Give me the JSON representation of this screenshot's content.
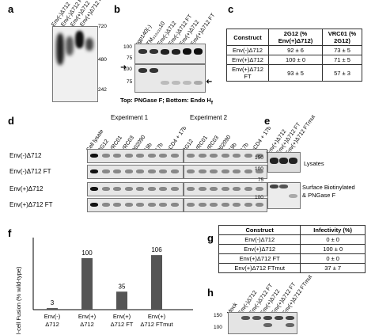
{
  "panels": {
    "a": {
      "label": "a",
      "lanes": [
        "Env(-)Δ712",
        "Env(-)Δ712 FT",
        "Env(+)Δ712",
        "Env(+)Δ712 FT"
      ],
      "markers": [
        "720",
        "480",
        "242"
      ]
    },
    "b": {
      "label": "b",
      "lanes": [
        "sgp140(-)",
        "TM₃₃₃₃₃₃10",
        "Env(-)Δ712",
        "Env(-)Δ712 FT",
        "Env(+)Δ712",
        "Env(+)Δ712 FT"
      ],
      "markers": [
        "100",
        "75",
        "100",
        "75"
      ],
      "caption": "Top: PNGase F; Bottom: Endo H",
      "caption_sub": "f"
    },
    "c": {
      "label": "c",
      "headers": [
        "Construct",
        "2G12 (% Env(+)Δ712)",
        "VRC01 (% 2G12)"
      ],
      "rows": [
        [
          "Env(-)Δ712",
          "92 ± 6",
          "73 ± 5"
        ],
        [
          "Env(+)Δ712",
          "100 ± 0",
          "71 ± 5"
        ],
        [
          "Env(+)Δ712 FT",
          "93 ± 5",
          "57 ± 3"
        ]
      ]
    },
    "d": {
      "label": "d",
      "experiment1": "Experiment 1",
      "experiment2": "Experiment 2",
      "lanes": [
        "Cell lysate",
        "2G12",
        "VRC01",
        "VRC03",
        "902090",
        "19b",
        "17b",
        "sCD4 + 17b",
        "2G12",
        "VRC01",
        "VRC03",
        "902090",
        "19b",
        "17b",
        "sCD4 + 17b"
      ],
      "rows": [
        "Env(-)Δ712",
        "Env(-)Δ712 FT",
        "Env(+)Δ712",
        "Env(+)Δ712 FT"
      ]
    },
    "e": {
      "label": "e",
      "lanes": [
        "Env(+)Δ712",
        "Env(+)Δ712 FT",
        "Env(+)Δ712 FTmut"
      ],
      "markers": [
        "150",
        "100",
        "75",
        "100"
      ],
      "lysates": "Lysates",
      "surface": "Surface Biotinylated & PNGase F"
    },
    "f": {
      "label": "f",
      "ylabel": "Cell-cell Fusion (% wild-type)",
      "chart_data": {
        "type": "bar",
        "categories": [
          "Env(-) Δ712",
          "Env(+) Δ712",
          "Env(+) Δ712 FT",
          "Env(+) Δ712 FTmut"
        ],
        "values": [
          3,
          100,
          35,
          106
        ],
        "value_labels": [
          "3",
          "100",
          "35",
          "106"
        ],
        "ylim": [
          0,
          140
        ]
      }
    },
    "g": {
      "label": "g",
      "headers": [
        "Construct",
        "Infectivity (%)"
      ],
      "rows": [
        [
          "Env(-)Δ712",
          "0 ± 0"
        ],
        [
          "Env(+)Δ712",
          "100 ± 0"
        ],
        [
          "Env(+)Δ712 FT",
          "0 ± 0"
        ],
        [
          "Env(+)Δ712 FTmut",
          "37 ± 7"
        ]
      ]
    },
    "h": {
      "label": "h",
      "lanes": [
        "Mock",
        "Env(-)Δ712",
        "Env(-)Δ712 FT",
        "Env(+)Δ712",
        "Env(+)Δ712 FT",
        "Env(+)Δ712 FTmut"
      ],
      "markers": [
        "150",
        "100"
      ]
    }
  }
}
